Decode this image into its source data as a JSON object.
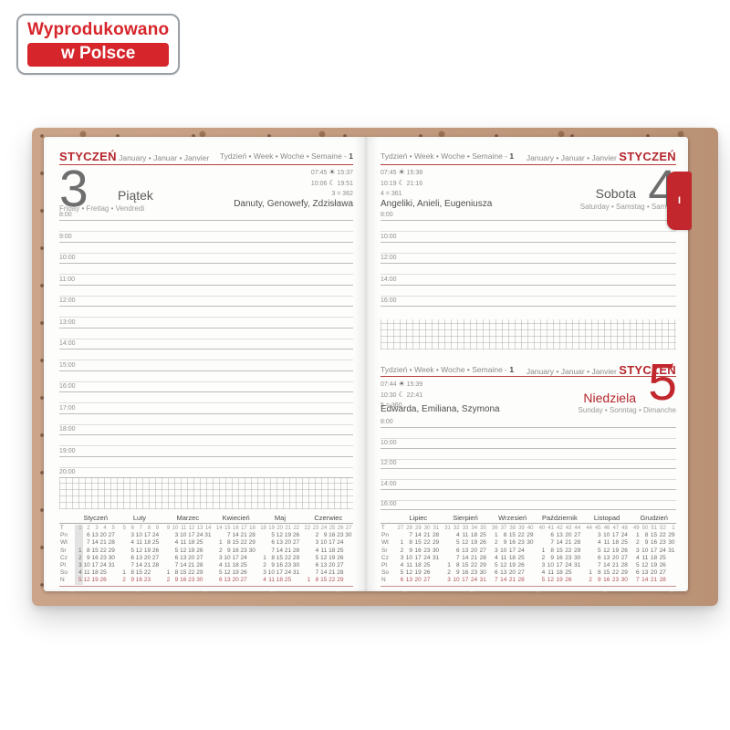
{
  "badge": {
    "line1": "Wyprodukowano",
    "line2": "w Polsce"
  },
  "side_tab": {
    "label": "I"
  },
  "icons": {
    "sun": "☀",
    "moon": "☾"
  },
  "pages": {
    "friday": {
      "month_name": "STYCZEŃ",
      "month_intl": "January • Januar • Janvier",
      "week_label": "Tydzień • Week • Woche • Semaine -",
      "week_number": "1",
      "day_number": "3",
      "day_name": "Piątek",
      "day_name_intl": "Friday • Freitag • Vendredi",
      "sunrise": "07:45",
      "sunset": "15:37",
      "moonrise": "10:06",
      "moonset": "19:51",
      "day_of_year": "3 = 362",
      "name_days": "Danuty, Genowefy, Zdzisława",
      "hours": [
        "8:00",
        "9:00",
        "10:00",
        "11:00",
        "12:00",
        "13:00",
        "14:00",
        "15:00",
        "16:00",
        "17:00",
        "18:00",
        "19:00",
        "20:00"
      ]
    },
    "saturday": {
      "month_name": "STYCZEŃ",
      "month_intl": "January • Januar • Janvier",
      "week_label": "Tydzień • Week • Woche • Semaine -",
      "week_number": "1",
      "day_number": "4",
      "day_name": "Sobota",
      "day_name_intl": "Saturday • Samstag • Samedi",
      "sunrise": "07:45",
      "sunset": "15:38",
      "moonrise": "10:19",
      "moonset": "21:16",
      "day_of_year": "4 = 361",
      "name_days": "Angeliki, Anieli, Eugeniusza",
      "hours": [
        "8:00",
        "10:00",
        "12:00",
        "14:00",
        "16:00"
      ]
    },
    "sunday": {
      "month_name": "STYCZEŃ",
      "month_intl": "January • Januar • Janvier",
      "week_label": "Tydzień • Week • Woche • Semaine -",
      "week_number": "1",
      "day_number": "5",
      "day_name": "Niedziela",
      "day_name_intl": "Sunday • Sonntag • Dimanche",
      "sunrise": "07:44",
      "sunset": "15:39",
      "moonrise": "10:30",
      "moonset": "22:41",
      "day_of_year": "5 = 360",
      "name_days": "Edwarda, Emiliana, Szymona",
      "hours": [
        "8:00",
        "10:00",
        "12:00",
        "14:00",
        "16:00"
      ]
    }
  },
  "calendars": {
    "corner_label": "T",
    "day_labels": [
      "Pn",
      "Wt",
      "Śr",
      "Cz",
      "Pt",
      "So",
      "N"
    ],
    "left_months": [
      {
        "name": "Styczeń",
        "weeks": [
          "1",
          "2",
          "3",
          "4",
          "5"
        ],
        "highlight": 0,
        "days": [
          [
            "",
            "6",
            "13",
            "20",
            "27"
          ],
          [
            "",
            "7",
            "14",
            "21",
            "28"
          ],
          [
            "1",
            "8",
            "15",
            "22",
            "29"
          ],
          [
            "2",
            "9",
            "16",
            "23",
            "30"
          ],
          [
            "3",
            "10",
            "17",
            "24",
            "31"
          ],
          [
            "4",
            "11",
            "18",
            "25",
            ""
          ],
          [
            "5",
            "12",
            "19",
            "26",
            ""
          ]
        ]
      },
      {
        "name": "Luty",
        "weeks": [
          "5",
          "6",
          "7",
          "8",
          "9"
        ],
        "highlight": -1,
        "days": [
          [
            "",
            "3",
            "10",
            "17",
            "24"
          ],
          [
            "",
            "4",
            "11",
            "18",
            "25"
          ],
          [
            "",
            "5",
            "12",
            "19",
            "26"
          ],
          [
            "",
            "6",
            "13",
            "20",
            "27"
          ],
          [
            "",
            "7",
            "14",
            "21",
            "28"
          ],
          [
            "1",
            "8",
            "15",
            "22",
            ""
          ],
          [
            "2",
            "9",
            "16",
            "23",
            ""
          ]
        ]
      },
      {
        "name": "Marzec",
        "weeks": [
          "9",
          "10",
          "11",
          "12",
          "13",
          "14"
        ],
        "highlight": -1,
        "days": [
          [
            "",
            "3",
            "10",
            "17",
            "24",
            "31"
          ],
          [
            "",
            "4",
            "11",
            "18",
            "25",
            ""
          ],
          [
            "",
            "5",
            "12",
            "19",
            "26",
            ""
          ],
          [
            "",
            "6",
            "13",
            "20",
            "27",
            ""
          ],
          [
            "",
            "7",
            "14",
            "21",
            "28",
            ""
          ],
          [
            "1",
            "8",
            "15",
            "22",
            "29",
            ""
          ],
          [
            "2",
            "9",
            "16",
            "23",
            "30",
            ""
          ]
        ]
      },
      {
        "name": "Kwiecień",
        "weeks": [
          "14",
          "15",
          "16",
          "17",
          "18"
        ],
        "highlight": -1,
        "days": [
          [
            "",
            "7",
            "14",
            "21",
            "28"
          ],
          [
            "1",
            "8",
            "15",
            "22",
            "29"
          ],
          [
            "2",
            "9",
            "16",
            "23",
            "30"
          ],
          [
            "3",
            "10",
            "17",
            "24",
            ""
          ],
          [
            "4",
            "11",
            "18",
            "25",
            ""
          ],
          [
            "5",
            "12",
            "19",
            "26",
            ""
          ],
          [
            "6",
            "13",
            "20",
            "27",
            ""
          ]
        ]
      },
      {
        "name": "Maj",
        "weeks": [
          "18",
          "19",
          "20",
          "21",
          "22"
        ],
        "highlight": -1,
        "days": [
          [
            "",
            "5",
            "12",
            "19",
            "26"
          ],
          [
            "",
            "6",
            "13",
            "20",
            "27"
          ],
          [
            "",
            "7",
            "14",
            "21",
            "28"
          ],
          [
            "1",
            "8",
            "15",
            "22",
            "29"
          ],
          [
            "2",
            "9",
            "16",
            "23",
            "30"
          ],
          [
            "3",
            "10",
            "17",
            "24",
            "31"
          ],
          [
            "4",
            "11",
            "18",
            "25",
            ""
          ]
        ]
      },
      {
        "name": "Czerwiec",
        "weeks": [
          "22",
          "23",
          "24",
          "25",
          "26",
          "27"
        ],
        "highlight": -1,
        "days": [
          [
            "",
            "2",
            "9",
            "16",
            "23",
            "30"
          ],
          [
            "",
            "3",
            "10",
            "17",
            "24",
            ""
          ],
          [
            "",
            "4",
            "11",
            "18",
            "25",
            ""
          ],
          [
            "",
            "5",
            "12",
            "19",
            "26",
            ""
          ],
          [
            "",
            "6",
            "13",
            "20",
            "27",
            ""
          ],
          [
            "",
            "7",
            "14",
            "21",
            "28",
            ""
          ],
          [
            "1",
            "8",
            "15",
            "22",
            "29",
            ""
          ]
        ]
      }
    ],
    "right_months": [
      {
        "name": "Lipiec",
        "weeks": [
          "27",
          "28",
          "29",
          "30",
          "31"
        ],
        "highlight": -1,
        "days": [
          [
            "",
            "7",
            "14",
            "21",
            "28"
          ],
          [
            "1",
            "8",
            "15",
            "22",
            "29"
          ],
          [
            "2",
            "9",
            "16",
            "23",
            "30"
          ],
          [
            "3",
            "10",
            "17",
            "24",
            "31"
          ],
          [
            "4",
            "11",
            "18",
            "25",
            ""
          ],
          [
            "5",
            "12",
            "19",
            "26",
            ""
          ],
          [
            "6",
            "13",
            "20",
            "27",
            ""
          ]
        ]
      },
      {
        "name": "Sierpień",
        "weeks": [
          "31",
          "32",
          "33",
          "34",
          "35"
        ],
        "highlight": -1,
        "days": [
          [
            "",
            "4",
            "11",
            "18",
            "25"
          ],
          [
            "",
            "5",
            "12",
            "19",
            "26"
          ],
          [
            "",
            "6",
            "13",
            "20",
            "27"
          ],
          [
            "",
            "7",
            "14",
            "21",
            "28"
          ],
          [
            "1",
            "8",
            "15",
            "22",
            "29"
          ],
          [
            "2",
            "9",
            "16",
            "23",
            "30"
          ],
          [
            "3",
            "10",
            "17",
            "24",
            "31"
          ]
        ]
      },
      {
        "name": "Wrzesień",
        "weeks": [
          "36",
          "37",
          "38",
          "39",
          "40"
        ],
        "highlight": -1,
        "days": [
          [
            "1",
            "8",
            "15",
            "22",
            "29"
          ],
          [
            "2",
            "9",
            "16",
            "23",
            "30"
          ],
          [
            "3",
            "10",
            "17",
            "24",
            ""
          ],
          [
            "4",
            "11",
            "18",
            "25",
            ""
          ],
          [
            "5",
            "12",
            "19",
            "26",
            ""
          ],
          [
            "6",
            "13",
            "20",
            "27",
            ""
          ],
          [
            "7",
            "14",
            "21",
            "28",
            ""
          ]
        ]
      },
      {
        "name": "Październik",
        "weeks": [
          "40",
          "41",
          "42",
          "43",
          "44"
        ],
        "highlight": -1,
        "days": [
          [
            "",
            "6",
            "13",
            "20",
            "27"
          ],
          [
            "",
            "7",
            "14",
            "21",
            "28"
          ],
          [
            "1",
            "8",
            "15",
            "22",
            "29"
          ],
          [
            "2",
            "9",
            "16",
            "23",
            "30"
          ],
          [
            "3",
            "10",
            "17",
            "24",
            "31"
          ],
          [
            "4",
            "11",
            "18",
            "25",
            ""
          ],
          [
            "5",
            "12",
            "19",
            "26",
            ""
          ]
        ]
      },
      {
        "name": "Listopad",
        "weeks": [
          "44",
          "45",
          "46",
          "47",
          "48"
        ],
        "highlight": -1,
        "days": [
          [
            "",
            "3",
            "10",
            "17",
            "24"
          ],
          [
            "",
            "4",
            "11",
            "18",
            "25"
          ],
          [
            "",
            "5",
            "12",
            "19",
            "26"
          ],
          [
            "",
            "6",
            "13",
            "20",
            "27"
          ],
          [
            "",
            "7",
            "14",
            "21",
            "28"
          ],
          [
            "1",
            "8",
            "15",
            "22",
            "29"
          ],
          [
            "2",
            "9",
            "16",
            "23",
            "30"
          ]
        ]
      },
      {
        "name": "Grudzień",
        "weeks": [
          "49",
          "50",
          "51",
          "52",
          "1"
        ],
        "highlight": -1,
        "days": [
          [
            "1",
            "8",
            "15",
            "22",
            "29"
          ],
          [
            "2",
            "9",
            "16",
            "23",
            "30"
          ],
          [
            "3",
            "10",
            "17",
            "24",
            "31"
          ],
          [
            "4",
            "11",
            "18",
            "25",
            ""
          ],
          [
            "5",
            "12",
            "19",
            "26",
            ""
          ],
          [
            "6",
            "13",
            "20",
            "27",
            ""
          ],
          [
            "7",
            "14",
            "21",
            "28",
            ""
          ]
        ]
      }
    ]
  },
  "colors": {
    "accent": "#c1272d",
    "sunday": "#b2545a"
  }
}
